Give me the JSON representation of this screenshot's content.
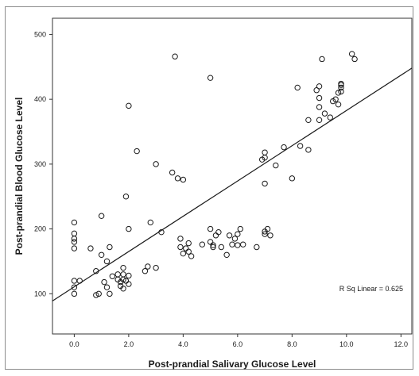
{
  "chart_data": {
    "type": "scatter",
    "xlabel": "Post-prandial Salivary Glucose Level",
    "ylabel": "Post-prandial Blood Glucose Level",
    "xlim": [
      -0.8,
      12.4
    ],
    "ylim": [
      38,
      525
    ],
    "x_ticks": [
      0.0,
      2.0,
      4.0,
      6.0,
      8.0,
      10.0,
      12.0
    ],
    "x_tick_labels": [
      "0.0",
      "2.0",
      "4.0",
      "6.0",
      "8.0",
      "10.0",
      "12.0"
    ],
    "y_ticks": [
      100,
      200,
      300,
      400,
      500
    ],
    "y_tick_labels": [
      "100",
      "200",
      "300",
      "400",
      "500"
    ],
    "grid": false,
    "annotation": "R Sq Linear = 0.625",
    "regression_line": {
      "x": [
        -0.8,
        12.4
      ],
      "y": [
        89,
        448
      ]
    },
    "points": [
      {
        "x": 0.0,
        "y": 210
      },
      {
        "x": 0.0,
        "y": 193
      },
      {
        "x": 0.0,
        "y": 185
      },
      {
        "x": 0.0,
        "y": 180
      },
      {
        "x": 0.0,
        "y": 170
      },
      {
        "x": 0.0,
        "y": 120
      },
      {
        "x": 0.0,
        "y": 110
      },
      {
        "x": 0.0,
        "y": 100
      },
      {
        "x": 0.2,
        "y": 120
      },
      {
        "x": 0.6,
        "y": 170
      },
      {
        "x": 0.8,
        "y": 135
      },
      {
        "x": 0.8,
        "y": 98
      },
      {
        "x": 0.9,
        "y": 100
      },
      {
        "x": 1.0,
        "y": 220
      },
      {
        "x": 1.0,
        "y": 160
      },
      {
        "x": 1.1,
        "y": 118
      },
      {
        "x": 1.2,
        "y": 110
      },
      {
        "x": 1.2,
        "y": 150
      },
      {
        "x": 1.3,
        "y": 172
      },
      {
        "x": 1.3,
        "y": 100
      },
      {
        "x": 1.4,
        "y": 127
      },
      {
        "x": 1.6,
        "y": 130
      },
      {
        "x": 1.6,
        "y": 122
      },
      {
        "x": 1.7,
        "y": 118
      },
      {
        "x": 1.7,
        "y": 112
      },
      {
        "x": 1.8,
        "y": 140
      },
      {
        "x": 1.8,
        "y": 130
      },
      {
        "x": 1.8,
        "y": 122
      },
      {
        "x": 1.8,
        "y": 108
      },
      {
        "x": 1.9,
        "y": 250
      },
      {
        "x": 1.9,
        "y": 120
      },
      {
        "x": 2.0,
        "y": 390
      },
      {
        "x": 2.0,
        "y": 200
      },
      {
        "x": 2.0,
        "y": 128
      },
      {
        "x": 2.0,
        "y": 115
      },
      {
        "x": 2.3,
        "y": 320
      },
      {
        "x": 2.6,
        "y": 135
      },
      {
        "x": 2.7,
        "y": 142
      },
      {
        "x": 2.8,
        "y": 210
      },
      {
        "x": 3.0,
        "y": 300
      },
      {
        "x": 3.0,
        "y": 140
      },
      {
        "x": 3.2,
        "y": 195
      },
      {
        "x": 3.6,
        "y": 287
      },
      {
        "x": 3.7,
        "y": 466
      },
      {
        "x": 3.8,
        "y": 278
      },
      {
        "x": 3.9,
        "y": 185
      },
      {
        "x": 3.9,
        "y": 172
      },
      {
        "x": 4.0,
        "y": 276
      },
      {
        "x": 4.0,
        "y": 162
      },
      {
        "x": 4.1,
        "y": 170
      },
      {
        "x": 4.2,
        "y": 178
      },
      {
        "x": 4.2,
        "y": 165
      },
      {
        "x": 4.3,
        "y": 158
      },
      {
        "x": 4.7,
        "y": 176
      },
      {
        "x": 5.0,
        "y": 433
      },
      {
        "x": 5.0,
        "y": 200
      },
      {
        "x": 5.0,
        "y": 180
      },
      {
        "x": 5.1,
        "y": 175
      },
      {
        "x": 5.1,
        "y": 172
      },
      {
        "x": 5.2,
        "y": 190
      },
      {
        "x": 5.3,
        "y": 195
      },
      {
        "x": 5.4,
        "y": 172
      },
      {
        "x": 5.6,
        "y": 160
      },
      {
        "x": 5.7,
        "y": 190
      },
      {
        "x": 5.8,
        "y": 176
      },
      {
        "x": 5.9,
        "y": 185
      },
      {
        "x": 6.0,
        "y": 192
      },
      {
        "x": 6.0,
        "y": 175
      },
      {
        "x": 6.1,
        "y": 200
      },
      {
        "x": 6.2,
        "y": 176
      },
      {
        "x": 6.7,
        "y": 172
      },
      {
        "x": 6.9,
        "y": 307
      },
      {
        "x": 7.0,
        "y": 318
      },
      {
        "x": 7.0,
        "y": 310
      },
      {
        "x": 7.0,
        "y": 270
      },
      {
        "x": 7.0,
        "y": 196
      },
      {
        "x": 7.0,
        "y": 192
      },
      {
        "x": 7.1,
        "y": 200
      },
      {
        "x": 7.2,
        "y": 190
      },
      {
        "x": 7.4,
        "y": 298
      },
      {
        "x": 7.7,
        "y": 326
      },
      {
        "x": 8.0,
        "y": 278
      },
      {
        "x": 8.2,
        "y": 418
      },
      {
        "x": 8.3,
        "y": 328
      },
      {
        "x": 8.6,
        "y": 368
      },
      {
        "x": 8.6,
        "y": 322
      },
      {
        "x": 8.9,
        "y": 414
      },
      {
        "x": 9.0,
        "y": 420
      },
      {
        "x": 9.0,
        "y": 402
      },
      {
        "x": 9.0,
        "y": 388
      },
      {
        "x": 9.0,
        "y": 368
      },
      {
        "x": 9.1,
        "y": 462
      },
      {
        "x": 9.2,
        "y": 378
      },
      {
        "x": 9.4,
        "y": 372
      },
      {
        "x": 9.5,
        "y": 397
      },
      {
        "x": 9.6,
        "y": 400
      },
      {
        "x": 9.7,
        "y": 392
      },
      {
        "x": 9.7,
        "y": 410
      },
      {
        "x": 9.8,
        "y": 412
      },
      {
        "x": 9.8,
        "y": 418
      },
      {
        "x": 9.8,
        "y": 422
      },
      {
        "x": 9.8,
        "y": 424
      },
      {
        "x": 10.2,
        "y": 470
      },
      {
        "x": 10.3,
        "y": 462
      }
    ]
  }
}
